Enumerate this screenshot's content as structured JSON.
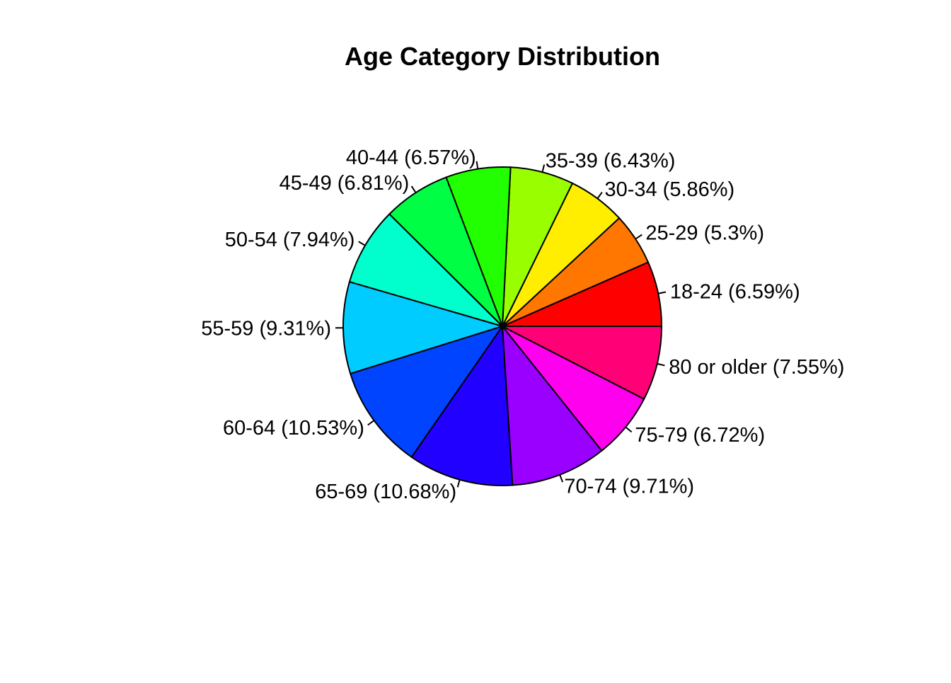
{
  "chart_data": {
    "type": "pie",
    "title": "Age Category Distribution",
    "start_angle_deg": 0,
    "direction": "counterclockwise",
    "slices": [
      {
        "category": "18-24",
        "value": 6.59,
        "label": "18-24 (6.59%)",
        "color": "#FF0000"
      },
      {
        "category": "25-29",
        "value": 5.3,
        "label": "25-29 (5.3%)",
        "color": "#FF7700"
      },
      {
        "category": "30-34",
        "value": 5.86,
        "label": "30-34 (5.86%)",
        "color": "#FFEE00"
      },
      {
        "category": "35-39",
        "value": 6.43,
        "label": "35-39 (6.43%)",
        "color": "#99FF00"
      },
      {
        "category": "40-44",
        "value": 6.57,
        "label": "40-44 (6.57%)",
        "color": "#22FF00"
      },
      {
        "category": "45-49",
        "value": 6.81,
        "label": "45-49 (6.81%)",
        "color": "#00FF44"
      },
      {
        "category": "50-54",
        "value": 7.94,
        "label": "50-54 (7.94%)",
        "color": "#00FFCC"
      },
      {
        "category": "55-59",
        "value": 9.31,
        "label": "55-59 (9.31%)",
        "color": "#00CCFF"
      },
      {
        "category": "60-64",
        "value": 10.53,
        "label": "60-64 (10.53%)",
        "color": "#0044FF"
      },
      {
        "category": "65-69",
        "value": 10.68,
        "label": "65-69 (10.68%)",
        "color": "#2200FF"
      },
      {
        "category": "70-74",
        "value": 9.71,
        "label": "70-74 (9.71%)",
        "color": "#9900FF"
      },
      {
        "category": "75-79",
        "value": 6.72,
        "label": "75-79 (6.72%)",
        "color": "#FF00EE"
      },
      {
        "category": "80 or older",
        "value": 7.55,
        "label": "80 or older (7.55%)",
        "color": "#FF0077"
      }
    ]
  }
}
